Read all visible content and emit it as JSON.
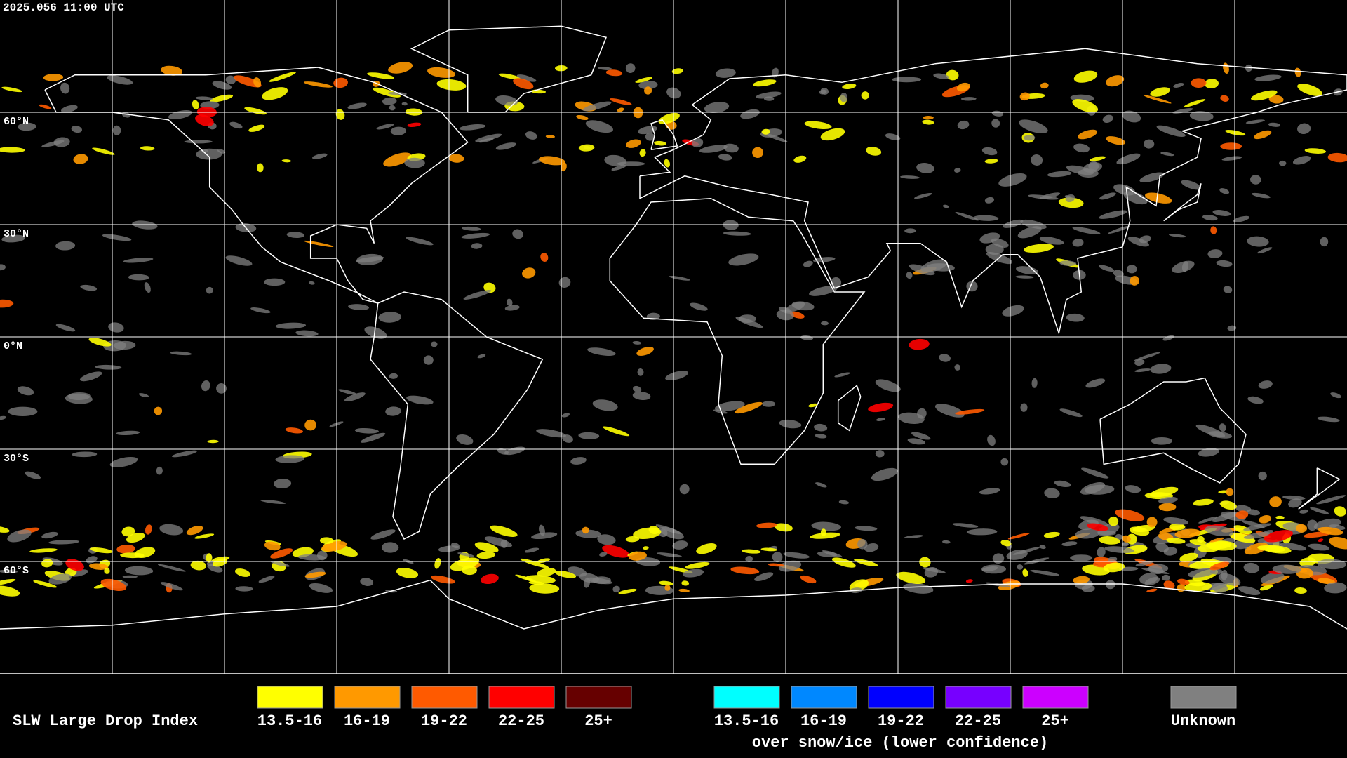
{
  "header": {
    "timestamp": "2025.056 11:00 UTC"
  },
  "map": {
    "lat_ticks": [
      {
        "value": 60,
        "label": "60°N"
      },
      {
        "value": 30,
        "label": "30°N"
      },
      {
        "value": 0,
        "label": "0°N"
      },
      {
        "value": -30,
        "label": "30°S"
      },
      {
        "value": -60,
        "label": "60°S"
      }
    ]
  },
  "legend": {
    "title": "SLW Large Drop Index",
    "items": [
      {
        "label": "13.5-16",
        "color": "#ffff00"
      },
      {
        "label": "16-19",
        "color": "#ff9900"
      },
      {
        "label": "19-22",
        "color": "#ff5a00"
      },
      {
        "label": "22-25",
        "color": "#ff0000"
      },
      {
        "label": "25+",
        "color": "#660000"
      }
    ],
    "snow_items": [
      {
        "label": "13.5-16",
        "color": "#00ffff"
      },
      {
        "label": "16-19",
        "color": "#0088ff"
      },
      {
        "label": "19-22",
        "color": "#0000ff"
      },
      {
        "label": "22-25",
        "color": "#7700ff"
      },
      {
        "label": "25+",
        "color": "#cc00ff"
      }
    ],
    "snow_caption": "over snow/ice (lower confidence)",
    "unknown": {
      "label": "Unknown",
      "color": "#808080"
    }
  }
}
